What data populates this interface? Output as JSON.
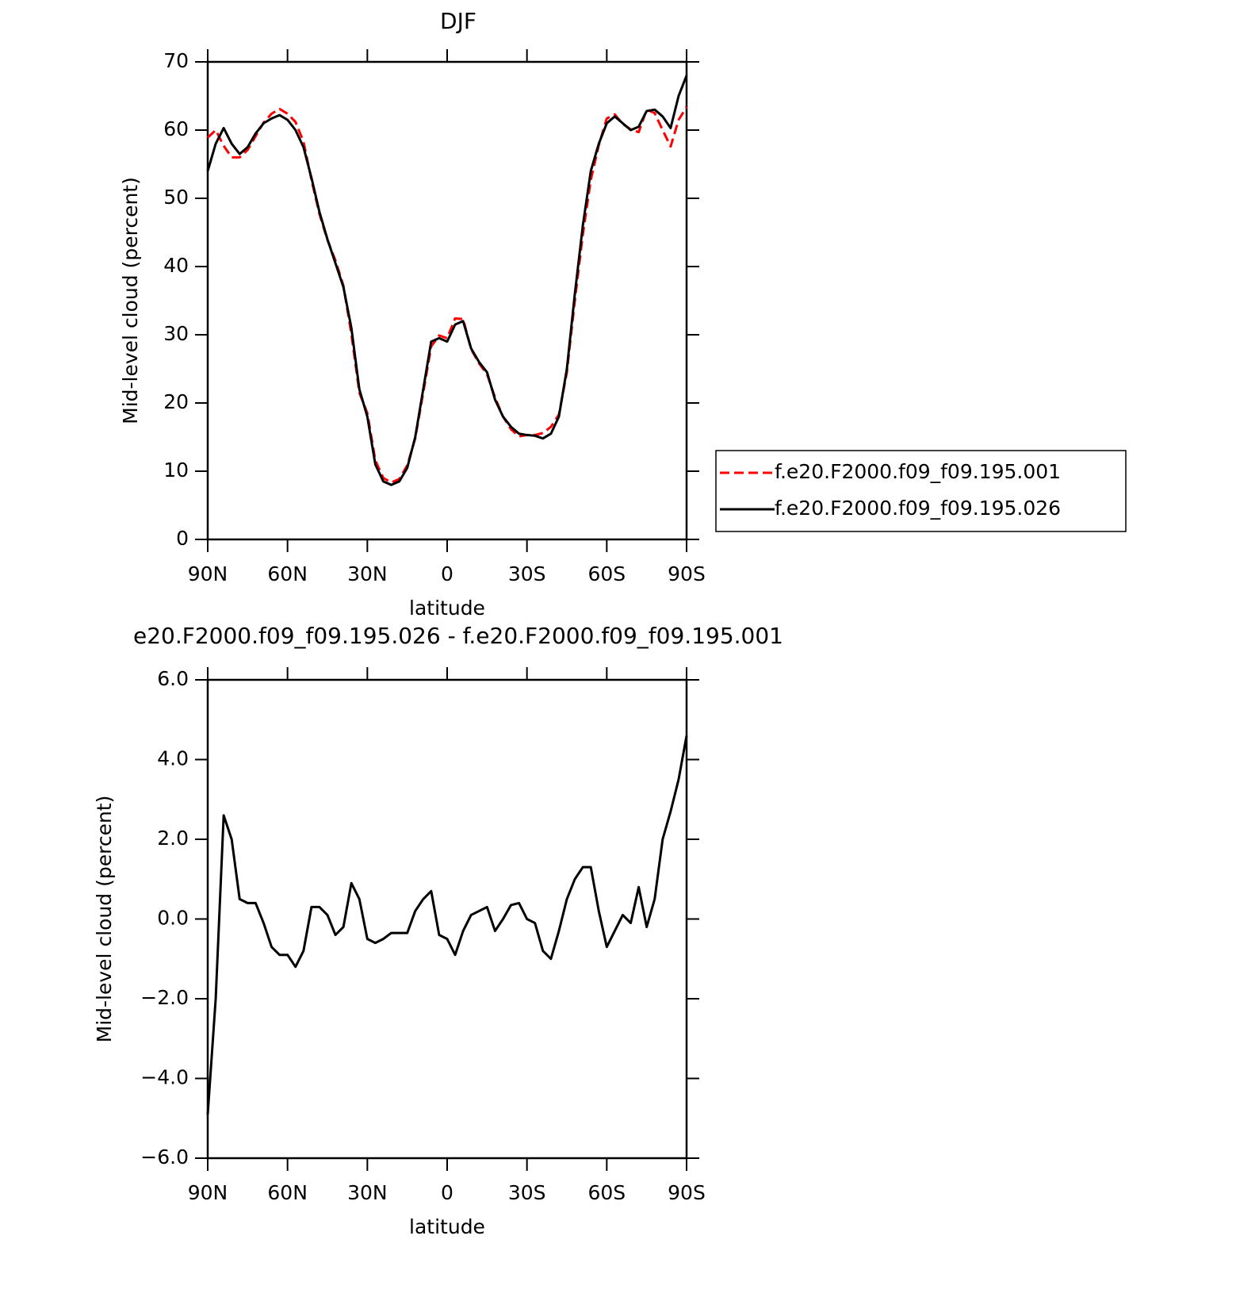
{
  "chart_data": [
    {
      "type": "line",
      "title": "DJF",
      "xlabel": "latitude",
      "ylabel": "Mid-level cloud (percent)",
      "x": [
        90,
        87,
        84,
        81,
        78,
        75,
        72,
        69,
        66,
        63,
        60,
        57,
        54,
        51,
        48,
        45,
        42,
        39,
        36,
        33,
        30,
        27,
        24,
        21,
        18,
        15,
        12,
        9,
        6,
        3,
        0,
        -3,
        -6,
        -9,
        -12,
        -15,
        -18,
        -21,
        -24,
        -27,
        -30,
        -33,
        -36,
        -39,
        -42,
        -45,
        -48,
        -51,
        -54,
        -57,
        -60,
        -63,
        -66,
        -69,
        -72,
        -75,
        -78,
        -81,
        -84,
        -87,
        -90
      ],
      "xlim": [
        90,
        -90
      ],
      "xticks": [
        {
          "value": 90,
          "label": "90N"
        },
        {
          "value": 60,
          "label": "60N"
        },
        {
          "value": 30,
          "label": "30N"
        },
        0,
        {
          "value": -30,
          "label": "30S"
        },
        {
          "value": -60,
          "label": "60S"
        },
        {
          "value": -90,
          "label": "90S"
        }
      ],
      "ylim": [
        0,
        70
      ],
      "yticks": [
        0,
        10,
        20,
        30,
        40,
        50,
        60,
        70
      ],
      "legend": "outside-right",
      "series": [
        {
          "name": "f.e20.F2000.f09_f09.195.001",
          "color": "#ff0000",
          "dashed": true,
          "values": [
            58.9,
            60,
            57.7,
            56,
            56,
            57.1,
            59.1,
            61.1,
            62.4,
            63.1,
            62.4,
            61.2,
            58.3,
            52.7,
            47.7,
            43.9,
            40.9,
            37.2,
            30.1,
            21.5,
            18.5,
            11.6,
            9,
            8.35,
            8.85,
            10.85,
            14.8,
            21.5,
            28.3,
            29.9,
            29.5,
            32.4,
            32.3,
            27.9,
            25.8,
            24.2,
            20.8,
            18,
            16.15,
            15.1,
            15.3,
            15.3,
            15.6,
            16.5,
            18.3,
            24.5,
            35,
            44.7,
            52.7,
            57.8,
            61.7,
            62.3,
            60.9,
            60.1,
            59.7,
            63,
            62.5,
            60,
            57.6,
            61.5,
            63.4
          ]
        },
        {
          "name": "f.e20.F2000.f09_f09.195.026",
          "color": "#000000",
          "dashed": false,
          "values": [
            54,
            58,
            60.3,
            58,
            56.5,
            57.5,
            59.5,
            61,
            61.7,
            62.2,
            61.5,
            60,
            57.5,
            53,
            48,
            44,
            40.5,
            37,
            31,
            22,
            18,
            11,
            8.5,
            8,
            8.5,
            10.5,
            15,
            22,
            29,
            29.5,
            29,
            31.5,
            32,
            28,
            26,
            24.5,
            20.5,
            18,
            16.5,
            15.5,
            15.3,
            15.2,
            14.8,
            15.5,
            18,
            25,
            36,
            46,
            54,
            58,
            61,
            62,
            61,
            60,
            60.5,
            62.8,
            63,
            62,
            60.3,
            65,
            68
          ]
        }
      ]
    },
    {
      "type": "line",
      "title": "e20.F2000.f09_f09.195.026 - f.e20.F2000.f09_f09.195.001",
      "xlabel": "latitude",
      "ylabel": "Mid-level cloud (percent)",
      "x": [
        90,
        87,
        84,
        81,
        78,
        75,
        72,
        69,
        66,
        63,
        60,
        57,
        54,
        51,
        48,
        45,
        42,
        39,
        36,
        33,
        30,
        27,
        24,
        21,
        18,
        15,
        12,
        9,
        6,
        3,
        0,
        -3,
        -6,
        -9,
        -12,
        -15,
        -18,
        -21,
        -24,
        -27,
        -30,
        -33,
        -36,
        -39,
        -42,
        -45,
        -48,
        -51,
        -54,
        -57,
        -60,
        -63,
        -66,
        -69,
        -72,
        -75,
        -78,
        -81,
        -84,
        -87,
        -90
      ],
      "xlim": [
        90,
        -90
      ],
      "xticks": [
        {
          "value": 90,
          "label": "90N"
        },
        {
          "value": 60,
          "label": "60N"
        },
        {
          "value": 30,
          "label": "30N"
        },
        0,
        {
          "value": -30,
          "label": "30S"
        },
        {
          "value": -60,
          "label": "60S"
        },
        {
          "value": -90,
          "label": "90S"
        }
      ],
      "ylim": [
        -6,
        6
      ],
      "yticks": [
        {
          "value": -6,
          "label": "−6.0"
        },
        {
          "value": -4,
          "label": "−4.0"
        },
        {
          "value": -2,
          "label": "−2.0"
        },
        {
          "value": 0,
          "label": "0.0"
        },
        {
          "value": 2,
          "label": "2.0"
        },
        {
          "value": 4,
          "label": "4.0"
        },
        {
          "value": 6,
          "label": "6.0"
        }
      ],
      "series": [
        {
          "color": "#000000",
          "dashed": false,
          "values": [
            -4.9,
            -2,
            2.6,
            2,
            0.5,
            0.4,
            0.4,
            -0.1,
            -0.7,
            -0.9,
            -0.9,
            -1.2,
            -0.8,
            0.3,
            0.3,
            0.1,
            -0.4,
            -0.2,
            0.9,
            0.5,
            -0.5,
            -0.6,
            -0.5,
            -0.35,
            -0.35,
            -0.35,
            0.2,
            0.5,
            0.7,
            -0.4,
            -0.5,
            -0.9,
            -0.3,
            0.1,
            0.2,
            0.3,
            -0.3,
            0,
            0.35,
            0.4,
            0,
            -0.1,
            -0.8,
            -1,
            -0.3,
            0.5,
            1,
            1.3,
            1.3,
            0.2,
            -0.7,
            -0.3,
            0.1,
            -0.1,
            0.8,
            -0.2,
            0.5,
            2,
            2.7,
            3.5,
            4.6
          ]
        }
      ]
    }
  ]
}
